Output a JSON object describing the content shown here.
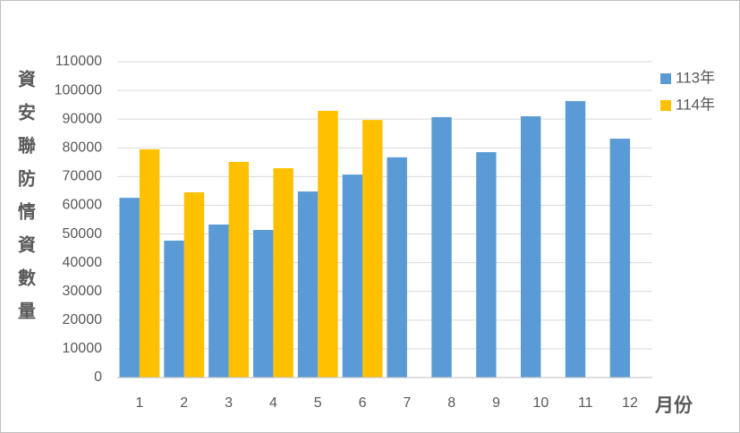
{
  "chart_data": {
    "type": "bar",
    "y_label": "資安聯防情資數量",
    "x_label": "月份",
    "categories": [
      "1",
      "2",
      "3",
      "4",
      "5",
      "6",
      "7",
      "8",
      "9",
      "10",
      "11",
      "12"
    ],
    "series": [
      {
        "name": "113年",
        "color": "#5b9bd5",
        "values": [
          62600,
          47700,
          53300,
          51400,
          64800,
          70700,
          76700,
          90700,
          78500,
          91000,
          96300,
          83200
        ]
      },
      {
        "name": "114年",
        "color": "#ffc000",
        "values": [
          79500,
          64500,
          75100,
          72900,
          92900,
          89700,
          null,
          null,
          null,
          null,
          null,
          null
        ]
      }
    ],
    "ylim": [
      0,
      110000
    ],
    "yticks": [
      0,
      10000,
      20000,
      30000,
      40000,
      50000,
      60000,
      70000,
      80000,
      90000,
      100000,
      110000
    ],
    "grid": true,
    "legend": "right"
  }
}
